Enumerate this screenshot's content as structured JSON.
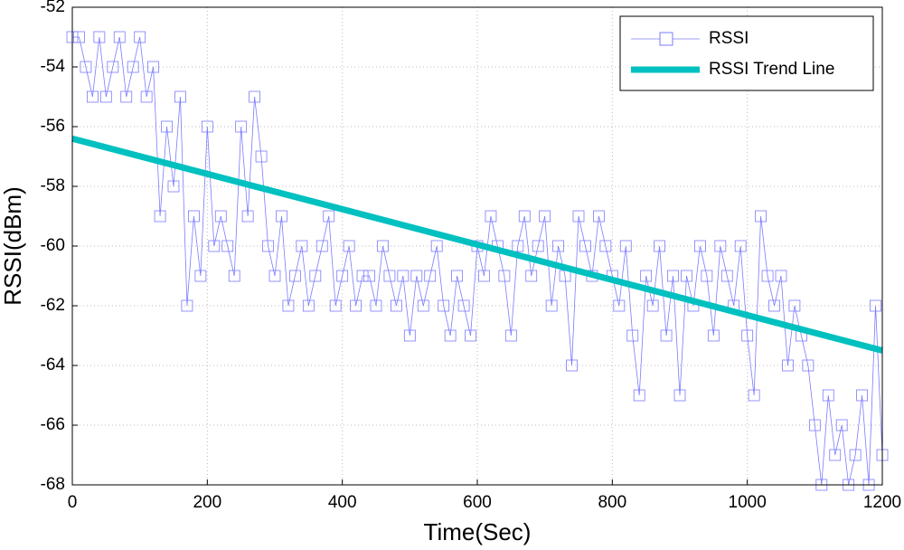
{
  "chart_data": {
    "type": "line",
    "xlabel": "Time(Sec)",
    "ylabel": "RSSI(dBm)",
    "xlim": [
      0,
      1200
    ],
    "xticks": [
      0,
      200,
      400,
      600,
      800,
      1000,
      1200
    ],
    "ylim": [
      -68,
      -52
    ],
    "yticks": [
      -68,
      -66,
      -64,
      -62,
      -60,
      -58,
      -56,
      -54,
      -52
    ],
    "grid": true,
    "legend": "upper right",
    "series": [
      {
        "name": "RSSI",
        "color": "#7b7bff",
        "marker": "square",
        "x": [
          0,
          10,
          20,
          30,
          40,
          50,
          60,
          70,
          80,
          90,
          100,
          110,
          120,
          130,
          140,
          150,
          160,
          170,
          180,
          190,
          200,
          210,
          220,
          230,
          240,
          250,
          260,
          270,
          280,
          290,
          300,
          310,
          320,
          330,
          340,
          350,
          360,
          370,
          380,
          390,
          400,
          410,
          420,
          430,
          440,
          450,
          460,
          470,
          480,
          490,
          500,
          510,
          520,
          530,
          540,
          550,
          560,
          570,
          580,
          590,
          600,
          610,
          620,
          630,
          640,
          650,
          660,
          670,
          680,
          690,
          700,
          710,
          720,
          730,
          740,
          750,
          760,
          770,
          780,
          790,
          800,
          810,
          820,
          830,
          840,
          850,
          860,
          870,
          880,
          890,
          900,
          910,
          920,
          930,
          940,
          950,
          960,
          970,
          980,
          990,
          1000,
          1010,
          1020,
          1030,
          1040,
          1050,
          1060,
          1070,
          1080,
          1090,
          1100,
          1110,
          1120,
          1130,
          1140,
          1150,
          1160,
          1170,
          1180,
          1190,
          1200
        ],
        "values": [
          -53,
          -53,
          -54,
          -55,
          -53,
          -55,
          -54,
          -53,
          -55,
          -54,
          -53,
          -55,
          -54,
          -59,
          -56,
          -58,
          -55,
          -62,
          -59,
          -61,
          -56,
          -60,
          -59,
          -60,
          -61,
          -56,
          -59,
          -55,
          -57,
          -60,
          -61,
          -59,
          -62,
          -61,
          -60,
          -62,
          -61,
          -60,
          -59,
          -62,
          -61,
          -60,
          -62,
          -61,
          -61,
          -62,
          -60,
          -61,
          -62,
          -61,
          -63,
          -61,
          -62,
          -61,
          -60,
          -62,
          -63,
          -61,
          -62,
          -63,
          -60,
          -61,
          -59,
          -60,
          -61,
          -63,
          -60,
          -59,
          -61,
          -60,
          -59,
          -62,
          -60,
          -61,
          -64,
          -59,
          -60,
          -61,
          -59,
          -60,
          -61,
          -62,
          -60,
          -63,
          -65,
          -61,
          -62,
          -60,
          -63,
          -61,
          -65,
          -61,
          -62,
          -60,
          -61,
          -63,
          -60,
          -61,
          -62,
          -60,
          -63,
          -65,
          -59,
          -61,
          -62,
          -61,
          -64,
          -62,
          -63,
          -64,
          -66,
          -68,
          -65,
          -67,
          -66,
          -68,
          -67,
          -65,
          -68,
          -62,
          -67
        ]
      },
      {
        "name": "RSSI Trend Line",
        "color": "#00c0c0",
        "x": [
          0,
          1200
        ],
        "values": [
          -56.4,
          -63.5
        ]
      }
    ]
  }
}
